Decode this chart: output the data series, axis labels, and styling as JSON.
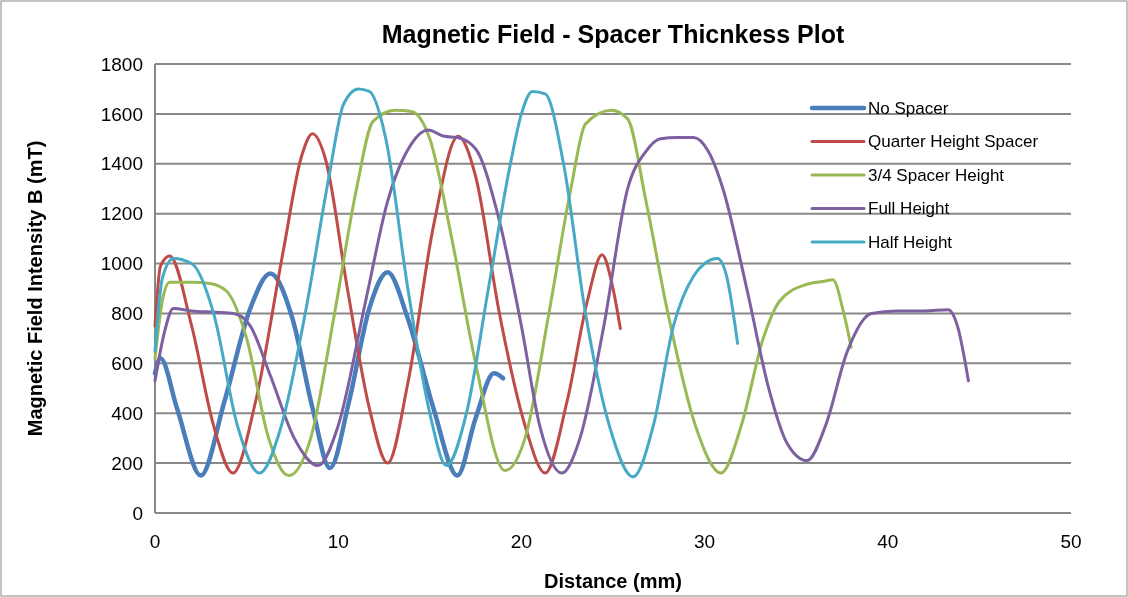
{
  "chart_data": {
    "type": "line",
    "title": "Magnetic Field - Spacer Thicnkess Plot",
    "xlabel": "Distance (mm)",
    "ylabel": "Magnetic Field Intensity B (mT)",
    "xlim": [
      0,
      50
    ],
    "xticks": [
      0,
      10,
      20,
      30,
      40,
      50
    ],
    "ylim": [
      0,
      1800
    ],
    "yticks": [
      0,
      200,
      400,
      600,
      800,
      1000,
      1200,
      1400,
      1600,
      1800
    ],
    "grid": "y",
    "legend": "top right",
    "marker": "none",
    "line_style": "solid",
    "series": [
      {
        "name": "No Spacer",
        "color": "#4a7ebb",
        "x": [
          0,
          0.3,
          1.2,
          2.5,
          3.8,
          5.2,
          6.3,
          7.5,
          8.6,
          9.55,
          10.6,
          11.7,
          12.7,
          13.8,
          15.2,
          16.5,
          17.5,
          18.5,
          19.0
        ],
        "values": [
          560,
          620,
          420,
          150,
          450,
          820,
          960,
          780,
          420,
          180,
          450,
          820,
          965,
          780,
          420,
          150,
          380,
          560,
          540
        ]
      },
      {
        "name": "Quarter Height Spacer",
        "color": "#be4b48",
        "x": [
          0,
          0.3,
          0.8,
          2.0,
          3.2,
          4.25,
          5.5,
          7.0,
          8.0,
          8.6,
          9.3,
          10.5,
          11.7,
          12.7,
          13.8,
          15.2,
          16.55,
          17.5,
          18.8,
          20.2,
          21.3,
          22.5,
          23.6,
          24.4,
          25.0,
          25.4
        ],
        "values": [
          750,
          990,
          1030,
          750,
          350,
          160,
          450,
          1050,
          1430,
          1520,
          1420,
          900,
          420,
          200,
          520,
          1150,
          1510,
          1350,
          800,
          350,
          160,
          450,
          850,
          1035,
          900,
          740
        ]
      },
      {
        "name": "3/4 Spacer Height",
        "color": "#98b954",
        "x": [
          0,
          0.4,
          0.8,
          2.0,
          3.0,
          3.9,
          5.0,
          6.2,
          7.3,
          8.5,
          9.8,
          11.0,
          11.9,
          13.1,
          14.0,
          15.0,
          16.2,
          17.5,
          19.1,
          20.2,
          21.5,
          22.7,
          23.5,
          24.9,
          25.8,
          26.8,
          28.0,
          29.5,
          30.9,
          32.0,
          33.2,
          34.1,
          35.5,
          36.6,
          37.0,
          37.6,
          38.0
        ],
        "values": [
          620,
          850,
          925,
          925,
          920,
          890,
          700,
          300,
          150,
          300,
          800,
          1300,
          1570,
          1615,
          1610,
          1500,
          1100,
          600,
          170,
          300,
          800,
          1300,
          1560,
          1615,
          1580,
          1250,
          800,
          350,
          160,
          350,
          700,
          850,
          915,
          930,
          935,
          800,
          665
        ]
      },
      {
        "name": "Full Height",
        "color": "#7d60a0",
        "x": [
          0,
          0.5,
          1.0,
          2.0,
          3.3,
          4.3,
          5.2,
          6.3,
          7.6,
          8.9,
          10.0,
          11.5,
          12.7,
          14.0,
          14.9,
          15.8,
          16.5,
          17.5,
          18.7,
          20.0,
          21.0,
          22.2,
          23.2,
          24.5,
          25.8,
          26.8,
          27.6,
          28.5,
          29.4,
          30.2,
          31.0,
          32.3,
          33.5,
          34.5,
          35.6,
          36.6,
          37.8,
          39.1,
          40.5,
          42.0,
          43.3,
          43.8,
          44.4
        ],
        "values": [
          530,
          720,
          820,
          810,
          805,
          800,
          750,
          550,
          300,
          190,
          350,
          850,
          1250,
          1480,
          1535,
          1510,
          1505,
          1460,
          1200,
          750,
          350,
          160,
          300,
          750,
          1300,
          1450,
          1500,
          1505,
          1505,
          1450,
          1300,
          900,
          500,
          280,
          210,
          350,
          650,
          800,
          810,
          810,
          815,
          750,
          530
        ]
      },
      {
        "name": "Half Height",
        "color": "#46aac5",
        "x": [
          0,
          0.4,
          1.0,
          2.0,
          3.2,
          4.5,
          5.7,
          6.9,
          8.2,
          9.5,
          10.3,
          11.1,
          11.7,
          12.6,
          13.8,
          15.0,
          15.9,
          17.0,
          18.2,
          19.4,
          20.0,
          20.6,
          21.3,
          22.3,
          23.5,
          24.8,
          26.1,
          27.2,
          28.3,
          29.4,
          30.0,
          30.7,
          31.2,
          31.8
        ],
        "values": [
          650,
          940,
          1020,
          1000,
          800,
          350,
          160,
          350,
          800,
          1350,
          1640,
          1700,
          1690,
          1500,
          900,
          400,
          190,
          400,
          900,
          1400,
          1600,
          1690,
          1680,
          1400,
          800,
          350,
          145,
          350,
          750,
          950,
          1000,
          1020,
          950,
          680
        ]
      }
    ]
  }
}
